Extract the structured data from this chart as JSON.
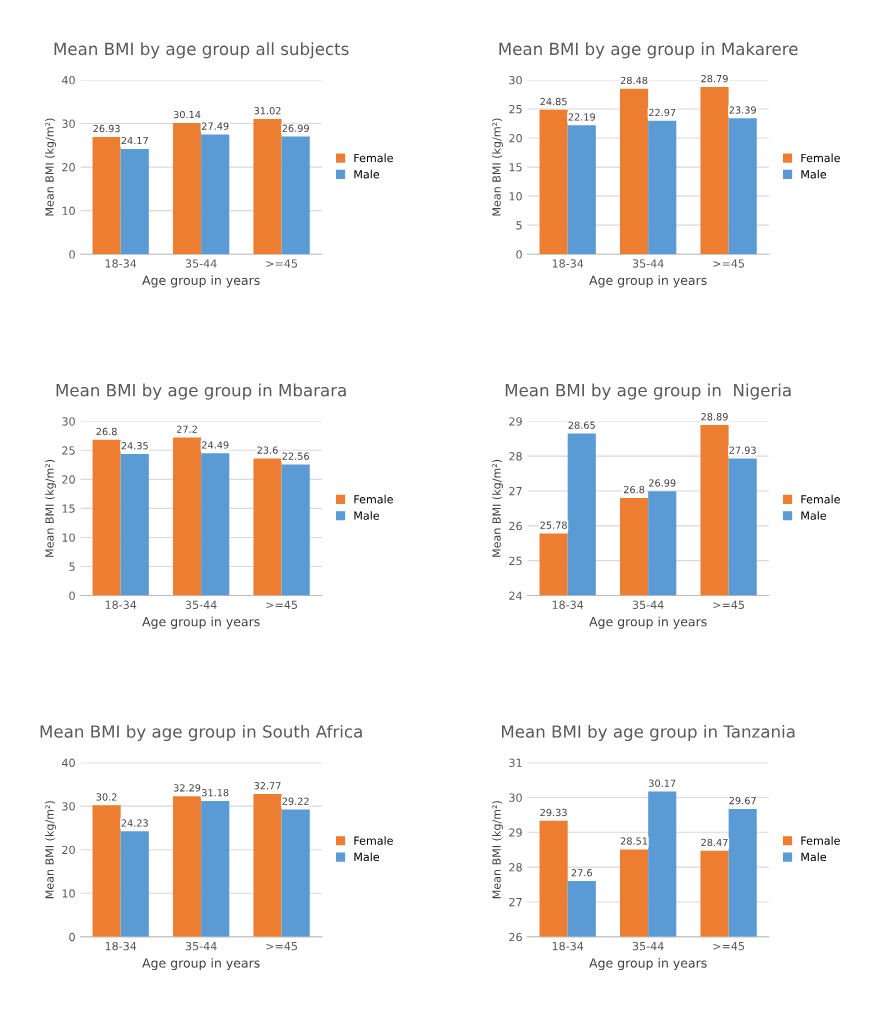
{
  "chart_data": [
    {
      "type": "bar",
      "title": "Mean BMI by age group all subjects",
      "categories": [
        "18-34",
        "35-44",
        ">=45"
      ],
      "xlabel": "Age group in years",
      "ylabel": "Mean BMI (kg/m²)",
      "ylim": [
        0,
        40
      ],
      "yticks": [
        0,
        10,
        20,
        30,
        40
      ],
      "grid": "y",
      "legend": "right",
      "data_labels": true,
      "series": [
        {
          "name": "Female",
          "color": "#ed7d31",
          "values": [
            26.93,
            30.14,
            31.02
          ]
        },
        {
          "name": "Male",
          "color": "#5b9bd5",
          "values": [
            24.17,
            27.49,
            26.99
          ]
        }
      ]
    },
    {
      "type": "bar",
      "title": "Mean BMI by age group in Makarere",
      "categories": [
        "18-34",
        "35-44",
        ">=45"
      ],
      "xlabel": "Age group in years",
      "ylabel": "Mean BMI (kg/m²)",
      "ylim": [
        0,
        30
      ],
      "yticks": [
        0,
        5,
        10,
        15,
        20,
        25,
        30
      ],
      "grid": "y",
      "legend": "right",
      "data_labels": true,
      "series": [
        {
          "name": "Female",
          "color": "#ed7d31",
          "values": [
            24.85,
            28.48,
            28.79
          ]
        },
        {
          "name": "Male",
          "color": "#5b9bd5",
          "values": [
            22.19,
            22.97,
            23.39
          ]
        }
      ]
    },
    {
      "type": "bar",
      "title": "Mean BMI by age group in Mbarara",
      "categories": [
        "18-34",
        "35-44",
        ">=45"
      ],
      "xlabel": "Age group in years",
      "ylabel": "Mean BMI (kg/m²)",
      "ylim": [
        0,
        30
      ],
      "yticks": [
        0,
        5,
        10,
        15,
        20,
        25,
        30
      ],
      "grid": "y",
      "legend": "right",
      "data_labels": true,
      "series": [
        {
          "name": "Female",
          "color": "#ed7d31",
          "values": [
            26.8,
            27.2,
            23.6
          ]
        },
        {
          "name": "Male",
          "color": "#5b9bd5",
          "values": [
            24.35,
            24.49,
            22.56
          ]
        }
      ]
    },
    {
      "type": "bar",
      "title": "Mean BMI by age group in  Nigeria",
      "categories": [
        "18-34",
        "35-44",
        ">=45"
      ],
      "xlabel": "Age group in years",
      "ylabel": "Mean BMI (kg/m²)",
      "ylim": [
        24,
        29
      ],
      "yticks": [
        24,
        25,
        26,
        27,
        28,
        29
      ],
      "grid": "y",
      "legend": "right",
      "data_labels": true,
      "series": [
        {
          "name": "Female",
          "color": "#ed7d31",
          "values": [
            25.78,
            26.8,
            28.89
          ]
        },
        {
          "name": "Male",
          "color": "#5b9bd5",
          "values": [
            28.65,
            26.99,
            27.93
          ]
        }
      ]
    },
    {
      "type": "bar",
      "title": "Mean BMI by age group in South Africa",
      "categories": [
        "18-34",
        "35-44",
        ">=45"
      ],
      "xlabel": "Age group in years",
      "ylabel": "Mean BMI (kg/m²)",
      "ylim": [
        0,
        40
      ],
      "yticks": [
        0,
        10,
        20,
        30,
        40
      ],
      "grid": "y",
      "legend": "right",
      "data_labels": true,
      "series": [
        {
          "name": "Female",
          "color": "#ed7d31",
          "values": [
            30.2,
            32.29,
            32.77
          ]
        },
        {
          "name": "Male",
          "color": "#5b9bd5",
          "values": [
            24.23,
            31.18,
            29.22
          ]
        }
      ]
    },
    {
      "type": "bar",
      "title": "Mean BMI by age group in Tanzania",
      "categories": [
        "18-34",
        "35-44",
        ">=45"
      ],
      "xlabel": "Age group in years",
      "ylabel": "Mean BMI (kg/m²)",
      "ylim": [
        26,
        31
      ],
      "yticks": [
        26,
        27,
        28,
        29,
        30,
        31
      ],
      "grid": "y",
      "legend": "right",
      "data_labels": true,
      "series": [
        {
          "name": "Female",
          "color": "#ed7d31",
          "values": [
            29.33,
            28.51,
            28.47
          ]
        },
        {
          "name": "Male",
          "color": "#5b9bd5",
          "values": [
            27.6,
            30.17,
            29.67
          ]
        }
      ]
    }
  ]
}
